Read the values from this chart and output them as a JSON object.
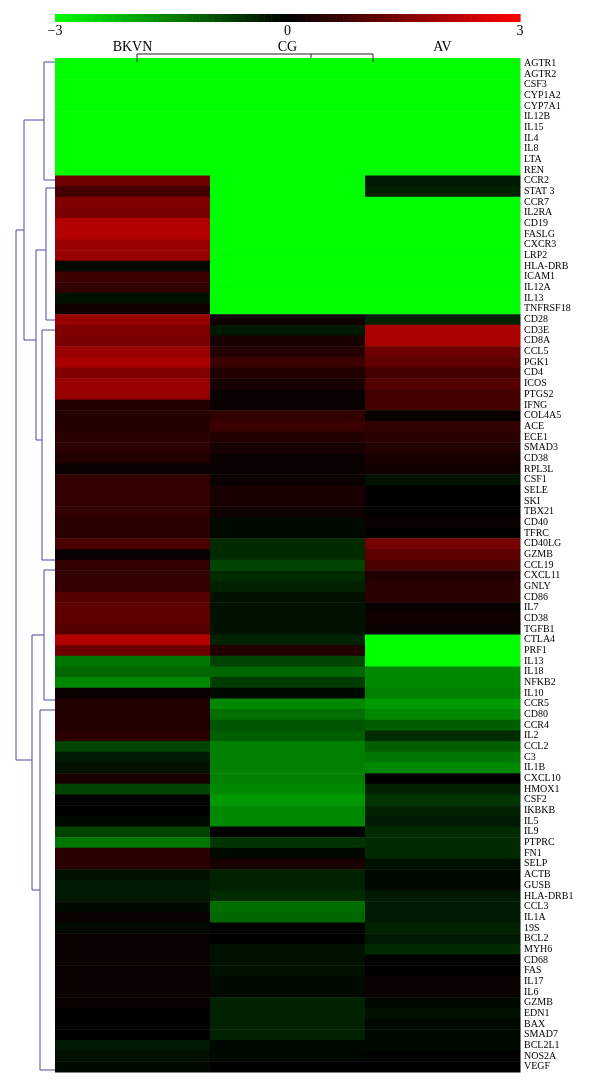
{
  "chart_data": {
    "type": "heatmap",
    "categories": [
      "BKVN",
      "CG",
      "AV"
    ],
    "y_categories": [
      "AGTR1",
      "AGTR2",
      "CSF3",
      "CYP1A2",
      "CYP7A1",
      "IL12B",
      "IL15",
      "IL4",
      "IL8",
      "LTA",
      "REN",
      "CCR2",
      "STAT 3",
      "CCR7",
      "IL2RA",
      "CD19",
      "FASLG",
      "CXCR3",
      "LRP2",
      "HLA-DRB",
      "ICAM1",
      "IL12A",
      "IL13",
      "TNFRSF18",
      "CD28",
      "CD3E",
      "CD8A",
      "CCL5",
      "PGK1",
      "CD4",
      "ICOS",
      "PTGS2",
      "IFNG",
      "COL4A5",
      "ACE",
      "ECE1",
      "SMAD3",
      "CD38",
      "RPL3L",
      "CSF1",
      "SELE",
      "SKI",
      "TBX21",
      "CD40",
      "TFRC",
      "CD40LG",
      "GZMB",
      "CCL19",
      "CXCL11",
      "GNLY",
      "CD86",
      "IL7",
      "CD38",
      "TGFB1",
      "CTLA4",
      "PRF1",
      "IL13",
      "IL18",
      "NFKB2",
      "IL10",
      "CCR5",
      "CD80",
      "CCR4",
      "IL2",
      "CCL2",
      "C3",
      "IL1B",
      "CXCL10",
      "HMOX1",
      "CSF2",
      "IKBKB",
      "IL5",
      "IL9",
      "PTPRC",
      "FN1",
      "SELP",
      "ACTB",
      "GUSB",
      "HLA-DRB1",
      "CCL3",
      "IL1A",
      "19S",
      "BCL2",
      "MYH6",
      "CD68",
      "FAS",
      "IL17",
      "IL6",
      "GZMB",
      "EDN1",
      "BAX",
      "SMAD7",
      "BCL2L1",
      "NOS2A",
      "VEGF"
    ],
    "cells": [
      [
        -3,
        -3,
        -3
      ],
      [
        -3,
        -3,
        -3
      ],
      [
        -3,
        -3,
        -3
      ],
      [
        -3,
        -3,
        -3
      ],
      [
        -3,
        -3,
        -3
      ],
      [
        -3,
        -3,
        -3
      ],
      [
        -3,
        -3,
        -3
      ],
      [
        -3,
        -3,
        -3
      ],
      [
        -3,
        -3,
        -3
      ],
      [
        -3,
        -3,
        -3
      ],
      [
        -3,
        -3,
        -3
      ],
      [
        1.3,
        -3,
        -0.3
      ],
      [
        0.8,
        -3,
        -0.4
      ],
      [
        1.5,
        -3,
        -3
      ],
      [
        1.4,
        -3,
        -3
      ],
      [
        2.1,
        -3,
        -3
      ],
      [
        2.1,
        -3,
        -3
      ],
      [
        1.8,
        -3,
        -3
      ],
      [
        1.8,
        -3,
        -3
      ],
      [
        -0.1,
        -3,
        -3
      ],
      [
        0.7,
        -3,
        -3
      ],
      [
        0.6,
        -3,
        -3
      ],
      [
        -0.2,
        -3,
        -3
      ],
      [
        0.2,
        -3,
        -3
      ],
      [
        1.8,
        0.2,
        -0.4
      ],
      [
        1.5,
        -0.3,
        2.0
      ],
      [
        1.4,
        0.3,
        2.0
      ],
      [
        1.8,
        0.4,
        1.3
      ],
      [
        2.0,
        0.7,
        1.1
      ],
      [
        1.5,
        0.4,
        0.8
      ],
      [
        1.8,
        0.3,
        1.0
      ],
      [
        1.8,
        0.1,
        0.8
      ],
      [
        0.4,
        0.1,
        0.8
      ],
      [
        0.4,
        0.6,
        0.1
      ],
      [
        0.4,
        0.7,
        0.6
      ],
      [
        0.5,
        0.4,
        0.5
      ],
      [
        0.5,
        0.3,
        0.4
      ],
      [
        0.4,
        0.1,
        0.3
      ],
      [
        0.1,
        0.1,
        0.2
      ],
      [
        0.6,
        0.1,
        -0.2
      ],
      [
        0.6,
        0.3,
        0
      ],
      [
        0.6,
        0.3,
        0
      ],
      [
        0.6,
        0.2,
        0
      ],
      [
        0.5,
        -0.1,
        0.1
      ],
      [
        0.5,
        -0.1,
        0
      ],
      [
        0.9,
        -0.5,
        1.4
      ],
      [
        0.1,
        -0.5,
        1.1
      ],
      [
        0.6,
        -0.8,
        0.9
      ],
      [
        0.6,
        -0.5,
        0.4
      ],
      [
        0.6,
        -0.4,
        0.5
      ],
      [
        1.0,
        -0.2,
        0.5
      ],
      [
        1.1,
        -0.2,
        0.1
      ],
      [
        1.1,
        -0.2,
        0.2
      ],
      [
        1.0,
        -0.2,
        0.1
      ],
      [
        2.1,
        -0.4,
        -3
      ],
      [
        1.3,
        0.4,
        -3
      ],
      [
        -1.4,
        -0.8,
        -3
      ],
      [
        -1.2,
        -1.2,
        -1.6
      ],
      [
        -1.6,
        -0.7,
        -1.6
      ],
      [
        0.1,
        -0.1,
        -1.5
      ],
      [
        0.4,
        -1.6,
        -1.8
      ],
      [
        0.4,
        -1.3,
        -1.6
      ],
      [
        0.4,
        -1.0,
        -1.1
      ],
      [
        0.5,
        -1.1,
        -0.5
      ],
      [
        -0.8,
        -1.5,
        -1.1
      ],
      [
        -0.3,
        -1.5,
        -1.4
      ],
      [
        -0.2,
        -1.5,
        -1.6
      ],
      [
        0.3,
        -1.5,
        0
      ],
      [
        -0.8,
        -1.6,
        -0.4
      ],
      [
        0,
        -1.8,
        -0.6
      ],
      [
        0,
        -1.6,
        -0.4
      ],
      [
        -0.1,
        -1.6,
        -0.3
      ],
      [
        -0.8,
        0,
        -0.5
      ],
      [
        -1.4,
        -0.6,
        -0.5
      ],
      [
        0.5,
        -0.1,
        -0.5
      ],
      [
        0.5,
        0.3,
        -0.2
      ],
      [
        -0.2,
        -0.4,
        -0.1
      ],
      [
        -0.3,
        -0.4,
        -0.1
      ],
      [
        -0.3,
        -0.5,
        -0.3
      ],
      [
        -0.1,
        -1.3,
        -0.3
      ],
      [
        0.1,
        -1.2,
        -0.3
      ],
      [
        -0.1,
        0,
        -0.4
      ],
      [
        0.1,
        0,
        -0.3
      ],
      [
        0.1,
        -0.2,
        -0.5
      ],
      [
        0.1,
        -0.2,
        0
      ],
      [
        0.1,
        -0.2,
        0
      ],
      [
        0.1,
        -0.1,
        0.1
      ],
      [
        0.1,
        -0.1,
        0.1
      ],
      [
        0.1,
        -0.4,
        -0.1
      ],
      [
        0,
        -0.4,
        -0.2
      ],
      [
        0,
        -0.4,
        -0.1
      ],
      [
        0,
        -0.4,
        -0.1
      ],
      [
        -0.3,
        -0.1,
        -0.1
      ],
      [
        -0.2,
        -0.1,
        0
      ],
      [
        -0.1,
        0,
        0
      ]
    ],
    "clim": [
      -3,
      3
    ],
    "cticks": [
      {
        "value": -3,
        "label": "−3"
      },
      0,
      3
    ]
  }
}
